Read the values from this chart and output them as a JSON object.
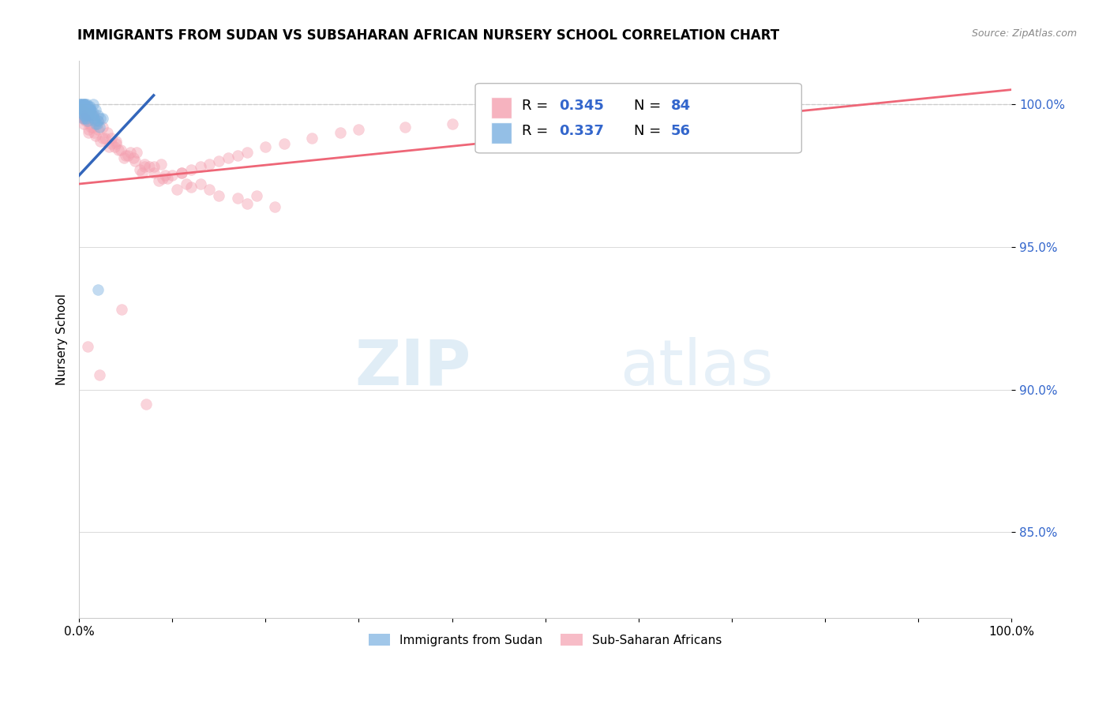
{
  "title": "IMMIGRANTS FROM SUDAN VS SUBSAHARAN AFRICAN NURSERY SCHOOL CORRELATION CHART",
  "source": "Source: ZipAtlas.com",
  "ylabel": "Nursery School",
  "xlim": [
    0.0,
    100.0
  ],
  "ylim": [
    82.0,
    101.5
  ],
  "y_tick_positions": [
    85.0,
    90.0,
    95.0,
    100.0
  ],
  "y_tick_labels": [
    "85.0%",
    "90.0%",
    "95.0%",
    "100.0%"
  ],
  "legend_entries": [
    {
      "label": "Immigrants from Sudan",
      "color": "#7ab0e0",
      "R": "0.337",
      "N": "56"
    },
    {
      "label": "Sub-Saharan Africans",
      "color": "#f4a0b0",
      "R": "0.345",
      "N": "84"
    }
  ],
  "blue_scatter_x": [
    0.3,
    0.5,
    0.8,
    1.0,
    1.2,
    1.5,
    0.2,
    0.7,
    1.8,
    0.4,
    0.6,
    0.9,
    1.3,
    0.1,
    0.8,
    1.6,
    0.5,
    2.0,
    0.7,
    1.1,
    0.4,
    1.9,
    0.6,
    0.3,
    1.4,
    0.9,
    0.2,
    1.7,
    0.8,
    0.6,
    1.2,
    0.5,
    2.3,
    1.0,
    0.4,
    0.7,
    0.3,
    2.0,
    0.9,
    0.5,
    1.3,
    0.8,
    1.1,
    0.4,
    0.6,
    1.8,
    2.5,
    0.3,
    0.7,
    1.0,
    0.5,
    0.9,
    1.5,
    0.4,
    2.2,
    2.0
  ],
  "blue_scatter_y": [
    100.0,
    99.8,
    100.0,
    99.7,
    99.9,
    100.0,
    100.0,
    99.5,
    99.8,
    99.9,
    100.0,
    99.6,
    99.8,
    100.0,
    99.7,
    99.5,
    99.9,
    99.6,
    100.0,
    99.8,
    99.5,
    99.3,
    99.9,
    99.7,
    99.6,
    99.8,
    100.0,
    99.4,
    99.7,
    99.9,
    99.8,
    100.0,
    99.5,
    99.6,
    99.9,
    99.7,
    99.8,
    99.4,
    99.6,
    100.0,
    99.7,
    99.5,
    99.8,
    99.9,
    99.6,
    99.3,
    99.5,
    99.8,
    99.7,
    99.9,
    99.6,
    99.4,
    99.7,
    99.8,
    99.2,
    93.5
  ],
  "pink_scatter_x": [
    0.3,
    0.5,
    0.8,
    1.2,
    1.5,
    2.0,
    2.5,
    3.0,
    3.5,
    4.0,
    4.5,
    5.0,
    6.0,
    7.0,
    8.0,
    9.0,
    10.0,
    11.0,
    12.0,
    13.0,
    14.0,
    15.0,
    16.0,
    17.0,
    18.0,
    20.0,
    22.0,
    25.0,
    28.0,
    30.0,
    0.4,
    0.7,
    1.0,
    1.8,
    2.3,
    3.2,
    4.8,
    6.5,
    8.5,
    10.5,
    0.6,
    1.3,
    2.8,
    4.2,
    5.8,
    7.5,
    9.5,
    12.0,
    15.0,
    18.0,
    0.5,
    1.6,
    3.5,
    5.2,
    7.0,
    9.2,
    11.5,
    14.0,
    17.0,
    21.0,
    0.8,
    2.0,
    4.0,
    6.2,
    8.8,
    11.0,
    35.0,
    40.0,
    50.0,
    65.0,
    1.0,
    2.5,
    5.5,
    8.0,
    13.0,
    19.0,
    0.6,
    1.4,
    3.8,
    6.8,
    0.9,
    2.2,
    4.6,
    7.2
  ],
  "pink_scatter_y": [
    99.8,
    99.5,
    99.7,
    99.3,
    99.6,
    99.4,
    99.2,
    99.0,
    98.8,
    98.6,
    98.4,
    98.2,
    98.0,
    97.8,
    97.6,
    97.4,
    97.5,
    97.6,
    97.7,
    97.8,
    97.9,
    98.0,
    98.1,
    98.2,
    98.3,
    98.5,
    98.6,
    98.8,
    99.0,
    99.1,
    99.6,
    99.4,
    99.1,
    98.9,
    98.7,
    98.5,
    98.1,
    97.7,
    97.3,
    97.0,
    99.5,
    99.2,
    98.8,
    98.4,
    98.1,
    97.8,
    97.4,
    97.1,
    96.8,
    96.5,
    99.3,
    99.0,
    98.6,
    98.2,
    97.9,
    97.5,
    97.2,
    97.0,
    96.7,
    96.4,
    99.4,
    99.1,
    98.7,
    98.3,
    97.9,
    97.6,
    99.2,
    99.3,
    99.4,
    99.5,
    99.0,
    98.8,
    98.3,
    97.8,
    97.2,
    96.8,
    99.5,
    99.2,
    98.5,
    97.6,
    91.5,
    90.5,
    92.8,
    89.5
  ],
  "blue_line_x": [
    0.0,
    8.0
  ],
  "blue_line_y": [
    97.5,
    100.3
  ],
  "pink_line_x": [
    0.0,
    100.0
  ],
  "pink_line_y": [
    97.2,
    100.5
  ],
  "watermark_zip": "ZIP",
  "watermark_atlas": "atlas",
  "background_color": "#ffffff",
  "grid_color": "#cccccc",
  "scatter_alpha": 0.45,
  "scatter_size": 100,
  "blue_color": "#7ab0e0",
  "pink_color": "#f4a0b0",
  "blue_line_color": "#3366bb",
  "pink_line_color": "#ee6677",
  "tick_color": "#3366cc",
  "dashed_line_y": 100.0
}
